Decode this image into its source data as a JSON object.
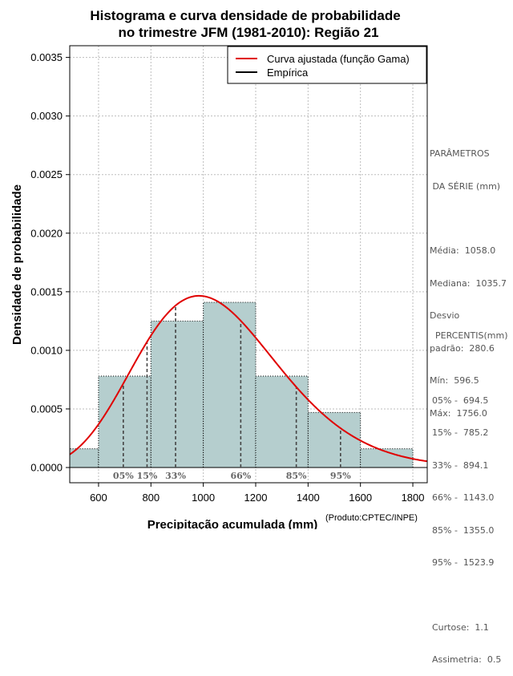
{
  "chart_data": {
    "type": "bar",
    "title": "Histograma e curva densidade de probabilidade",
    "subtitle": "no trimestre JFM (1981-2010): Região 21",
    "xlabel": "Precipitação acumulada (mm)",
    "ylabel": "Densidade de probabilidade",
    "xlim": [
      490,
      1855
    ],
    "ylim": [
      -0.00013,
      0.0036
    ],
    "x_ticks": [
      600,
      800,
      1000,
      1200,
      1400,
      1600,
      1800
    ],
    "y_ticks": [
      0.0,
      0.0005,
      0.001,
      0.0015,
      0.002,
      0.0025,
      0.003,
      0.0035
    ],
    "y_tick_labels": [
      "0.0000",
      "0.0005",
      "0.0010",
      "0.0015",
      "0.0020",
      "0.0025",
      "0.0030",
      "0.0035"
    ],
    "grid": true,
    "bins": [
      {
        "from": 400,
        "to": 600,
        "density": 0.00016
      },
      {
        "from": 600,
        "to": 800,
        "density": 0.00078
      },
      {
        "from": 800,
        "to": 1000,
        "density": 0.00125
      },
      {
        "from": 1000,
        "to": 1200,
        "density": 0.00141
      },
      {
        "from": 1200,
        "to": 1400,
        "density": 0.00078
      },
      {
        "from": 1400,
        "to": 1600,
        "density": 0.00047
      },
      {
        "from": 1600,
        "to": 1800,
        "density": 0.00016
      }
    ],
    "curve": {
      "name": "Curva ajustada (função Gama)",
      "color": "#e00000",
      "mean": 1058.0,
      "sd": 280.6
    },
    "legend": [
      {
        "label": "Curva ajustada (função Gama)",
        "color": "#e00000"
      },
      {
        "label": "Empírica",
        "color": "#000000"
      }
    ],
    "legend_position": "top-right",
    "percentiles": [
      {
        "label": "05%",
        "value": 694.5
      },
      {
        "label": "15%",
        "value": 785.2
      },
      {
        "label": "33%",
        "value": 894.1
      },
      {
        "label": "66%",
        "value": 1143.0
      },
      {
        "label": "85%",
        "value": 1355.0
      },
      {
        "label": "95%",
        "value": 1523.9
      }
    ],
    "bar_color": "#b5cece",
    "credit": "(Produto:CPTEC/INPE)"
  },
  "side_panel": {
    "params_title_1": "PARÂMETROS",
    "params_title_2": " DA SÉRIE (mm)",
    "params_lines": [
      "Média:  1058.0",
      "Mediana:  1035.7",
      "Desvio",
      "padrão:  280.6",
      "Mín:  596.5",
      "Máx:  1756.0"
    ],
    "percentis_title": "PERCENTIS(mm)",
    "percentis_lines": [
      "05% -  694.5",
      "15% -  785.2",
      "33% -  894.1",
      "66% -  1143.0",
      "85% -  1355.0",
      "95% -  1523.9"
    ],
    "curtose": "Curtose:  1.1",
    "assimetria": "Assimetria:  0.5"
  }
}
